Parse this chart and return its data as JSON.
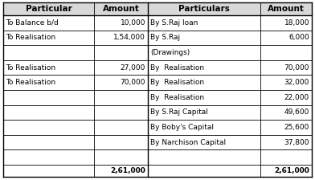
{
  "left_rows": [
    [
      "To Balance b/d",
      "10,000"
    ],
    [
      "To Realisation",
      "1,54,000"
    ],
    [
      "",
      ""
    ],
    [
      "To Realisation",
      "27,000"
    ],
    [
      "To Realisation",
      "70,000"
    ],
    [
      "",
      ""
    ],
    [
      "",
      ""
    ],
    [
      "",
      ""
    ],
    [
      "",
      ""
    ],
    [
      "",
      ""
    ]
  ],
  "right_rows": [
    [
      "By S.Raj loan",
      "18,000"
    ],
    [
      "By S.Raj",
      "6,000"
    ],
    [
      "(Drawings)",
      ""
    ],
    [
      "By  Realisation",
      "70,000"
    ],
    [
      "By  Realisation",
      "32,000"
    ],
    [
      "By  Realisation",
      "22,000"
    ],
    [
      "By S.Raj Capital",
      "49,600"
    ],
    [
      "By Boby's Capital",
      "25,600"
    ],
    [
      "By Narchison Capital",
      "37,800"
    ],
    [
      "",
      ""
    ]
  ],
  "left_total": "2,61,000",
  "right_total": "2,61,000",
  "left_headers": [
    "Particular",
    "Amount"
  ],
  "right_headers": [
    "Particulars",
    "Amount"
  ],
  "bg_color": "#ffffff",
  "border_color": "#000000",
  "font_size": 6.5,
  "header_font_size": 7.5
}
